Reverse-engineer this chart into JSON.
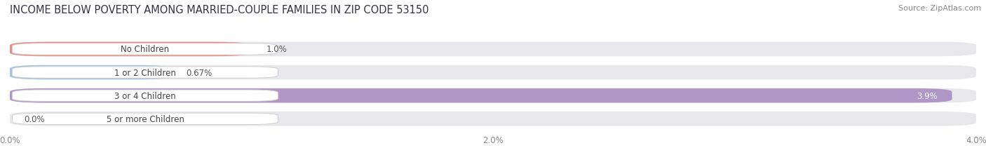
{
  "title": "INCOME BELOW POVERTY AMONG MARRIED-COUPLE FAMILIES IN ZIP CODE 53150",
  "source": "Source: ZipAtlas.com",
  "categories": [
    "No Children",
    "1 or 2 Children",
    "3 or 4 Children",
    "5 or more Children"
  ],
  "values": [
    1.0,
    0.67,
    3.9,
    0.0
  ],
  "bar_colors": [
    "#e8918c",
    "#a8c4df",
    "#b097c8",
    "#78c8c5"
  ],
  "xlim": [
    0,
    4.0
  ],
  "xticks": [
    0.0,
    2.0,
    4.0
  ],
  "xticklabels": [
    "0.0%",
    "2.0%",
    "4.0%"
  ],
  "value_labels": [
    "1.0%",
    "0.67%",
    "3.9%",
    "0.0%"
  ],
  "background_color": "#ffffff",
  "bar_bg_color": "#e8e8ec",
  "title_fontsize": 10.5,
  "source_fontsize": 8,
  "label_fontsize": 8.5,
  "value_fontsize": 8.5,
  "tick_fontsize": 8.5
}
